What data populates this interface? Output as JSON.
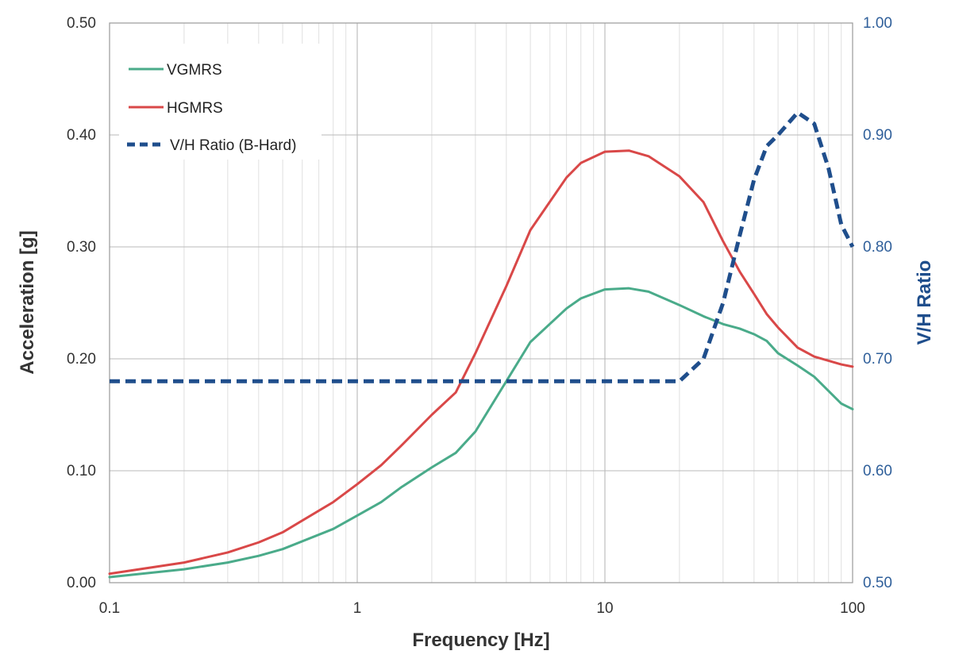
{
  "chart_data": {
    "type": "line",
    "xlabel": "Frequency [Hz]",
    "ylabel": "Acceleration [g]",
    "y2label": "V/H Ratio",
    "x_scale": "log",
    "xlim": [
      0.1,
      100
    ],
    "ylim": [
      0,
      0.5
    ],
    "y2lim": [
      0.5,
      1.0
    ],
    "x_ticks": [
      "0.1",
      "1",
      "10",
      "100"
    ],
    "y_ticks": [
      "0.00",
      "0.10",
      "0.20",
      "0.30",
      "0.40",
      "0.50"
    ],
    "y2_ticks": [
      "0.50",
      "0.60",
      "0.70",
      "0.80",
      "0.90",
      "1.00"
    ],
    "grid": true,
    "legend_position": "top-left",
    "colors": {
      "vgmrs": "#4aab8a",
      "hgmrs": "#d94848",
      "vh": "#1f4e8c"
    },
    "series": [
      {
        "name": "VGMRS",
        "axis": "left",
        "style": "solid",
        "x": [
          0.1,
          0.2,
          0.3,
          0.4,
          0.5,
          0.8,
          1,
          1.25,
          1.5,
          2,
          2.5,
          3,
          4,
          5,
          7,
          8,
          10,
          12.5,
          15,
          20,
          25,
          30,
          35,
          40,
          45,
          50,
          60,
          70,
          90,
          100
        ],
        "y": [
          0.005,
          0.012,
          0.018,
          0.024,
          0.03,
          0.048,
          0.06,
          0.072,
          0.085,
          0.103,
          0.116,
          0.135,
          0.18,
          0.215,
          0.245,
          0.254,
          0.262,
          0.263,
          0.26,
          0.248,
          0.238,
          0.231,
          0.227,
          0.222,
          0.216,
          0.205,
          0.194,
          0.184,
          0.16,
          0.155
        ]
      },
      {
        "name": "HGMRS",
        "axis": "left",
        "style": "solid",
        "x": [
          0.1,
          0.2,
          0.3,
          0.4,
          0.5,
          0.8,
          1,
          1.25,
          1.5,
          2,
          2.5,
          3,
          4,
          5,
          7,
          8,
          10,
          12.5,
          15,
          20,
          25,
          30,
          35,
          40,
          45,
          50,
          60,
          70,
          90,
          100
        ],
        "y": [
          0.008,
          0.018,
          0.027,
          0.036,
          0.045,
          0.072,
          0.088,
          0.105,
          0.122,
          0.15,
          0.17,
          0.205,
          0.265,
          0.315,
          0.362,
          0.375,
          0.385,
          0.386,
          0.381,
          0.363,
          0.34,
          0.305,
          0.278,
          0.258,
          0.24,
          0.228,
          0.21,
          0.202,
          0.195,
          0.193
        ]
      },
      {
        "name": "V/H Ratio (B-Hard)",
        "axis": "right",
        "style": "dashed",
        "x": [
          0.1,
          1,
          10,
          20,
          25,
          30,
          35,
          40,
          45,
          50,
          60,
          70,
          80,
          90,
          100
        ],
        "y": [
          0.68,
          0.68,
          0.68,
          0.68,
          0.7,
          0.75,
          0.81,
          0.86,
          0.89,
          0.9,
          0.92,
          0.91,
          0.87,
          0.82,
          0.8
        ]
      }
    ]
  }
}
